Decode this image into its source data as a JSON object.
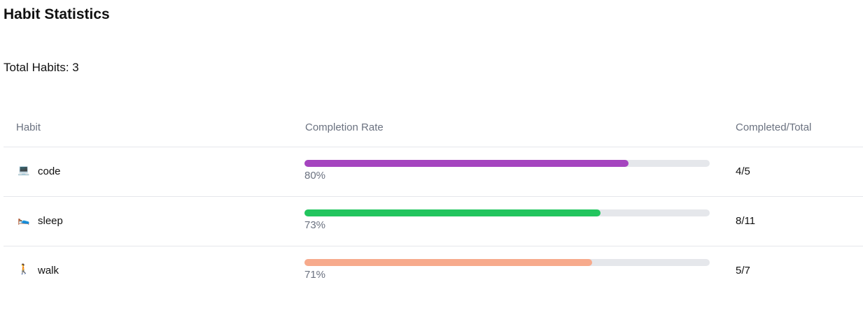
{
  "header": {
    "title": "Habit Statistics",
    "summary": "Total Habits: 3"
  },
  "table": {
    "columns": [
      "Habit",
      "Completion Rate",
      "Completed/Total"
    ],
    "rate_range": [
      0,
      100
    ],
    "rows": [
      {
        "icon": "💻",
        "name": "code",
        "rate": 80,
        "rate_label": "80%",
        "color": "#a544bf",
        "completed": "4/5"
      },
      {
        "icon": "🛌",
        "name": "sleep",
        "rate": 73,
        "rate_label": "73%",
        "color": "#22c55e",
        "completed": "8/11"
      },
      {
        "icon": "🚶",
        "name": "walk",
        "rate": 71,
        "rate_label": "71%",
        "color": "#f7aa8c",
        "completed": "5/7"
      }
    ]
  }
}
